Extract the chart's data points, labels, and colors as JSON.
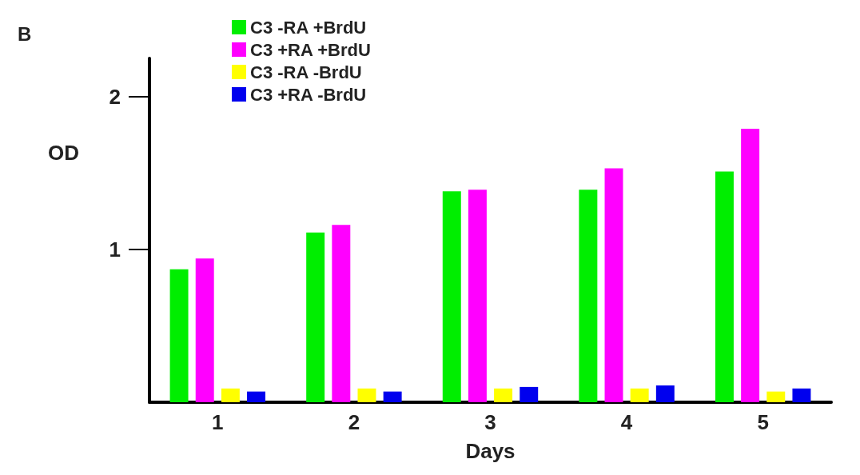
{
  "chart_data": {
    "type": "bar",
    "categories": [
      "1",
      "2",
      "3",
      "4",
      "5"
    ],
    "series": [
      {
        "name": "C3 -RA +BrdU",
        "color": "#00ee00",
        "values": [
          0.87,
          1.11,
          1.38,
          1.39,
          1.51
        ]
      },
      {
        "name": "C3 +RA +BrdU",
        "color": "#ff00ff",
        "values": [
          0.94,
          1.16,
          1.39,
          1.53,
          1.79
        ]
      },
      {
        "name": "C3 -RA -BrdU",
        "color": "#ffff00",
        "values": [
          0.09,
          0.09,
          0.09,
          0.09,
          0.07
        ]
      },
      {
        "name": "C3 +RA -BrdU",
        "color": "#0000ee",
        "values": [
          0.07,
          0.07,
          0.1,
          0.11,
          0.09
        ]
      }
    ],
    "xlabel": "Days",
    "ylabel": "OD",
    "ylim": [
      0,
      2.25
    ],
    "yticks": [
      1,
      2
    ],
    "annotations": [
      "B"
    ],
    "grid": false,
    "legend": "top left"
  }
}
